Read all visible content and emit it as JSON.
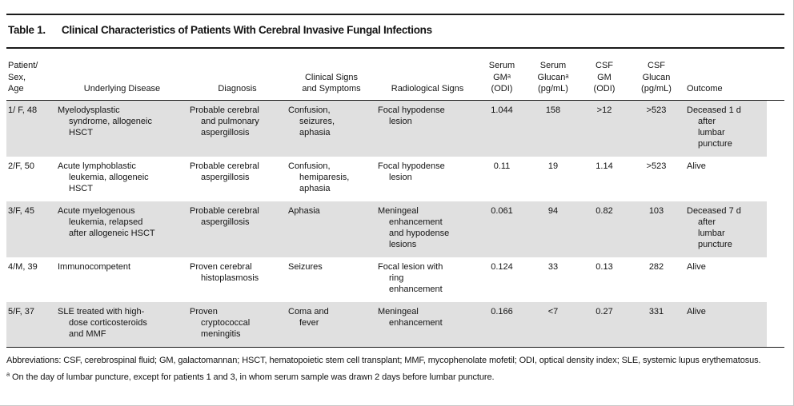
{
  "colors": {
    "stripe": "#e0e0e0",
    "rule": "#1a1a1a",
    "text": "#141414",
    "background": "#ffffff"
  },
  "title": {
    "label": "Table 1.",
    "text": "Clinical Characteristics of Patients With Cerebral Invasive Fungal Infections"
  },
  "table": {
    "columns": [
      {
        "id": "patient",
        "label": "Patient/\nSex,\nAge"
      },
      {
        "id": "underlying_disease",
        "label": "Underlying Disease"
      },
      {
        "id": "diagnosis",
        "label": "Diagnosis"
      },
      {
        "id": "clinical_signs",
        "label": "Clinical Signs\nand Symptoms"
      },
      {
        "id": "radiological_signs",
        "label": "Radiological Signs"
      },
      {
        "id": "serum_gm",
        "label": "Serum\nGMᵃ\n(ODI)"
      },
      {
        "id": "serum_glucan",
        "label": "Serum\nGlucanᵃ\n(pg/mL)"
      },
      {
        "id": "csf_gm",
        "label": "CSF\nGM\n(ODI)"
      },
      {
        "id": "csf_glucan",
        "label": "CSF\nGlucan\n(pg/mL)"
      },
      {
        "id": "outcome",
        "label": "Outcome"
      }
    ],
    "rows": [
      {
        "cells": [
          "1/ F, 48",
          "Myelodysplastic\nsyndrome, allogeneic\nHSCT",
          "Probable cerebral\nand pulmonary\naspergillosis",
          "Confusion,\nseizures,\naphasia",
          "Focal hypodense\nlesion",
          "1.044",
          "158",
          ">12",
          ">523",
          "Deceased 1 d\nafter\nlumbar\npuncture"
        ]
      },
      {
        "cells": [
          "2/F, 50",
          "Acute lymphoblastic\nleukemia, allogeneic\nHSCT",
          "Probable cerebral\naspergillosis",
          "Confusion,\nhemiparesis,\naphasia",
          "Focal hypodense\nlesion",
          "0.11",
          "19",
          "1.14",
          ">523",
          "Alive"
        ]
      },
      {
        "cells": [
          "3/F, 45",
          "Acute myelogenous\nleukemia, relapsed\nafter allogeneic HSCT",
          "Probable cerebral\naspergillosis",
          "Aphasia",
          "Meningeal\nenhancement\nand hypodense\nlesions",
          "0.061",
          "94",
          "0.82",
          "103",
          "Deceased 7 d\nafter\nlumbar\npuncture"
        ]
      },
      {
        "cells": [
          "4/M, 39",
          "Immunocompetent",
          "Proven cerebral\nhistoplasmosis",
          "Seizures",
          "Focal lesion with\nring\nenhancement",
          "0.124",
          "33",
          "0.13",
          "282",
          "Alive"
        ]
      },
      {
        "cells": [
          "5/F, 37",
          "SLE treated with high-\ndose corticosteroids\nand MMF",
          "Proven\ncryptococcal\nmeningitis",
          "Coma and\nfever",
          "Meningeal\nenhancement",
          "0.166",
          "<7",
          "0.27",
          "331",
          "Alive"
        ]
      }
    ]
  },
  "footnotes": {
    "abbreviations": "Abbreviations: CSF, cerebrospinal fluid; GM, galactomannan; HSCT, hematopoietic stem cell transplant; MMF, mycophenolate mofetil; ODI, optical density index; SLE, systemic lupus erythematosus.",
    "note_a_marker": "a",
    "note_a": "On the day of lumbar puncture, except for patients 1 and 3, in whom serum sample was drawn 2 days before lumbar puncture."
  }
}
